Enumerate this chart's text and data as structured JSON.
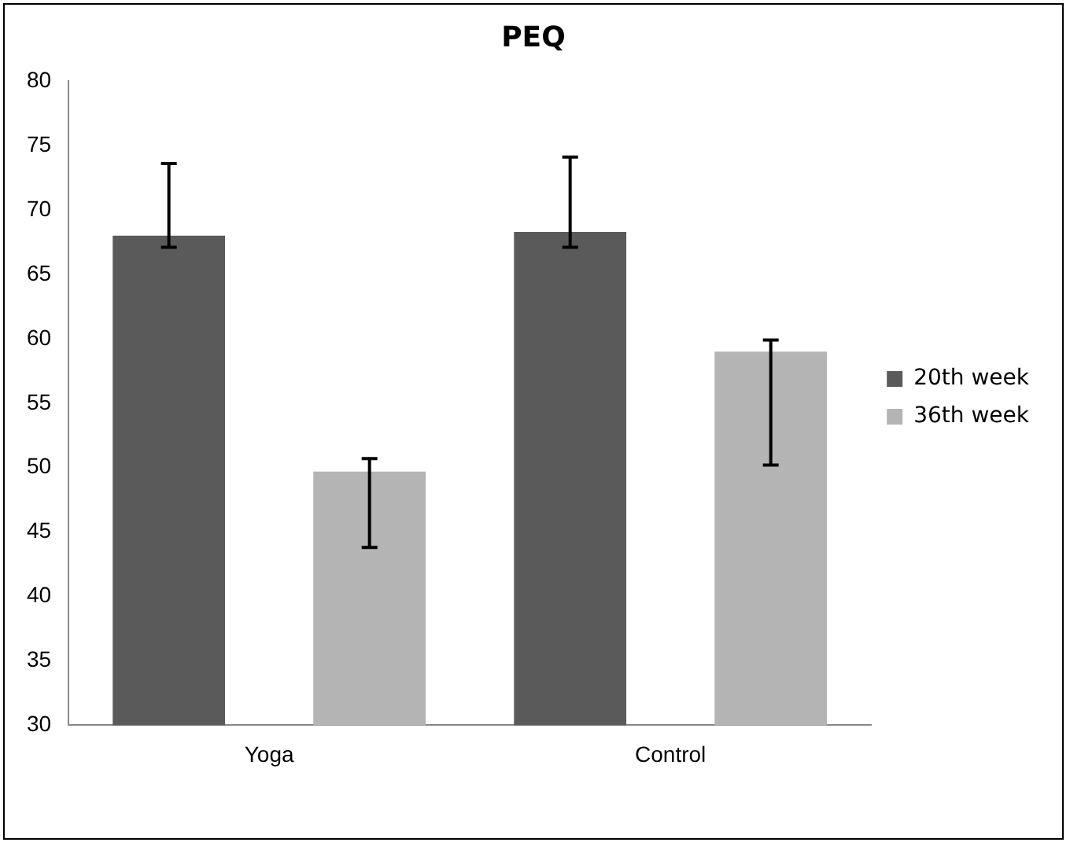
{
  "chart_data": {
    "type": "bar",
    "title": "PEQ",
    "categories": [
      "Yoga",
      "Control"
    ],
    "series": [
      {
        "name": "20th week",
        "color": "#5a5a5a",
        "values": [
          68.0,
          68.3
        ],
        "errors": [
          [
            67.1,
            73.6
          ],
          [
            67.1,
            74.1
          ]
        ]
      },
      {
        "name": "36th week",
        "color": "#b4b4b4",
        "values": [
          49.7,
          59.0
        ],
        "errors": [
          [
            43.8,
            50.7
          ],
          [
            50.2,
            59.9
          ]
        ]
      }
    ],
    "ylim": [
      30,
      80
    ],
    "yticks": [
      30,
      35,
      40,
      45,
      50,
      55,
      60,
      65,
      70,
      75,
      80
    ],
    "grid": false,
    "legend": "right"
  }
}
